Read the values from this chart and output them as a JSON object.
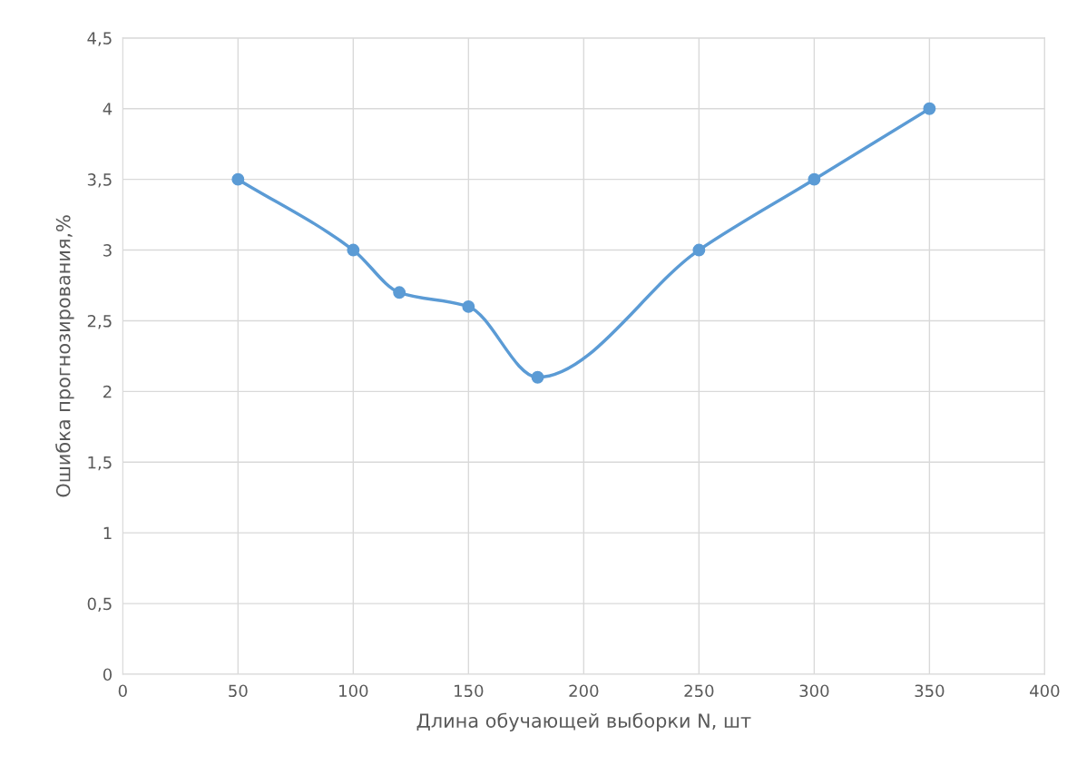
{
  "chart_data": {
    "type": "line",
    "xlabel": "Длина обучающей выборки N, шт",
    "ylabel": "Ошибка прогнозирования,%",
    "x": [
      50,
      100,
      120,
      150,
      180,
      250,
      300,
      350
    ],
    "series": [
      {
        "color": "#5b9bd5",
        "values": [
          3.5,
          3,
          2.7,
          2.6,
          2.1,
          3,
          3.5,
          4
        ]
      }
    ],
    "xlim": [
      0,
      400
    ],
    "xticks": [
      0,
      50,
      100,
      150,
      200,
      250,
      300,
      350,
      400
    ],
    "ylim": [
      0,
      4.5
    ],
    "yticks": [
      0,
      {
        "value": 0.5,
        "label": "0,5"
      },
      1,
      {
        "value": 1.5,
        "label": "1,5"
      },
      2,
      {
        "value": 2.5,
        "label": "2,5"
      },
      3,
      {
        "value": 3.5,
        "label": "3,5"
      },
      4,
      {
        "value": 4.5,
        "label": "4,5"
      }
    ],
    "grid": true,
    "marker": "circle",
    "line_style": "solid"
  }
}
